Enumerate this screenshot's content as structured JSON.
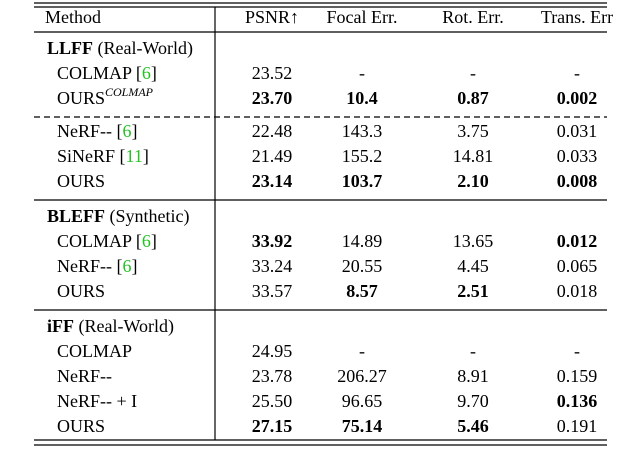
{
  "table": {
    "header": [
      "Method",
      "PSNR↑",
      "Focal Err.",
      "Rot. Err.",
      "Trans. Err"
    ],
    "sections": [
      {
        "title": [
          {
            "text": "LLFF",
            "bold": true
          },
          {
            "text": " (Real-World)"
          }
        ],
        "rows": [
          {
            "method": [
              {
                "text": "COLMAP ["
              },
              {
                "text": "6",
                "cite": true
              },
              {
                "text": "]"
              }
            ],
            "cells": [
              "23.52",
              "-",
              "-",
              "-"
            ],
            "bold": []
          },
          {
            "method": [
              {
                "text": "OURS"
              },
              {
                "text": "COLMAP",
                "sup": true
              }
            ],
            "cells": [
              "23.70",
              "10.4",
              "0.87",
              "0.002"
            ],
            "bold": [
              0,
              1,
              2,
              3
            ]
          },
          {
            "method": [
              {
                "text": "NeRF-- ["
              },
              {
                "text": "6",
                "cite": true
              },
              {
                "text": "]"
              }
            ],
            "cells": [
              "22.48",
              "143.3",
              "3.75",
              "0.031"
            ],
            "bold": [],
            "dashed_before": true
          },
          {
            "method": [
              {
                "text": "SiNeRF ["
              },
              {
                "text": "11",
                "cite": true
              },
              {
                "text": "]"
              }
            ],
            "cells": [
              "21.49",
              "155.2",
              "14.81",
              "0.033"
            ],
            "bold": []
          },
          {
            "method": [
              {
                "text": "OURS"
              }
            ],
            "cells": [
              "23.14",
              "103.7",
              "2.10",
              "0.008"
            ],
            "bold": [
              0,
              1,
              2,
              3
            ]
          }
        ]
      },
      {
        "title": [
          {
            "text": "BLEFF",
            "bold": true
          },
          {
            "text": " (Synthetic)"
          }
        ],
        "rows": [
          {
            "method": [
              {
                "text": "COLMAP ["
              },
              {
                "text": "6",
                "cite": true
              },
              {
                "text": "]"
              }
            ],
            "cells": [
              "33.92",
              "14.89",
              "13.65",
              "0.012"
            ],
            "bold": [
              0,
              3
            ]
          },
          {
            "method": [
              {
                "text": "NeRF-- ["
              },
              {
                "text": "6",
                "cite": true
              },
              {
                "text": "]"
              }
            ],
            "cells": [
              "33.24",
              "20.55",
              "4.45",
              "0.065"
            ],
            "bold": []
          },
          {
            "method": [
              {
                "text": "OURS"
              }
            ],
            "cells": [
              "33.57",
              "8.57",
              "2.51",
              "0.018"
            ],
            "bold": [
              1,
              2
            ]
          }
        ]
      },
      {
        "title": [
          {
            "text": "iFF",
            "bold": true
          },
          {
            "text": " (Real-World)"
          }
        ],
        "rows": [
          {
            "method": [
              {
                "text": "COLMAP"
              }
            ],
            "cells": [
              "24.95",
              "-",
              "-",
              "-"
            ],
            "bold": []
          },
          {
            "method": [
              {
                "text": "NeRF--"
              }
            ],
            "cells": [
              "23.78",
              "206.27",
              "8.91",
              "0.159"
            ],
            "bold": []
          },
          {
            "method": [
              {
                "text": "NeRF-- + I"
              }
            ],
            "cells": [
              "25.50",
              "96.65",
              "9.70",
              "0.136"
            ],
            "bold": [
              3
            ]
          },
          {
            "method": [
              {
                "text": "OURS"
              }
            ],
            "cells": [
              "27.15",
              "75.14",
              "5.46",
              "0.191"
            ],
            "bold": [
              0,
              1,
              2
            ]
          }
        ]
      }
    ]
  }
}
